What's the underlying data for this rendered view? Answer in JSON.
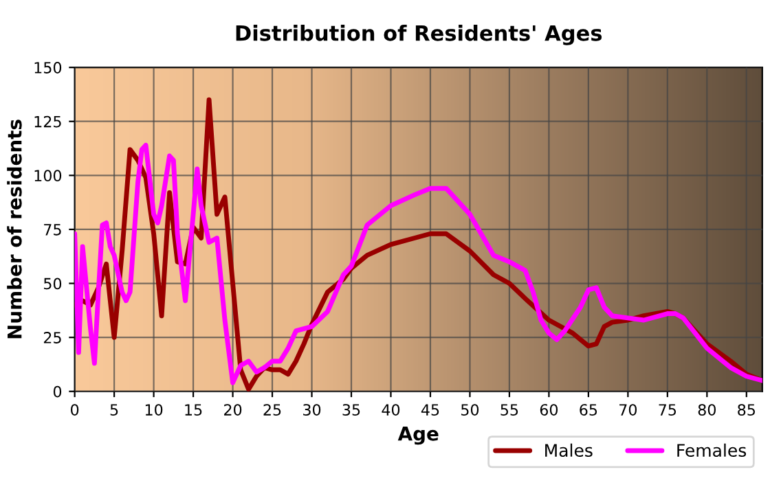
{
  "chart_data": {
    "type": "line",
    "title": "Distribution of Residents' Ages",
    "xlabel": "Age",
    "ylabel": "Number of residents",
    "series": [
      {
        "name": "Males",
        "color": "#990000",
        "x": [
          0,
          1,
          2,
          3,
          4,
          5,
          6,
          7,
          8,
          9,
          10,
          11,
          12,
          13,
          14,
          15,
          16,
          17,
          18,
          19,
          20,
          21,
          22,
          23,
          24,
          25,
          26,
          27,
          28,
          29,
          30,
          32,
          34,
          35,
          37,
          40,
          43,
          45,
          47,
          50,
          53,
          55,
          57,
          60,
          62,
          63,
          65,
          66,
          67,
          68,
          70,
          72,
          75,
          76,
          77,
          80,
          83,
          85,
          87
        ],
        "values": [
          40,
          42,
          40,
          48,
          59,
          25,
          65,
          112,
          107,
          99,
          73,
          35,
          92,
          60,
          59,
          76,
          71,
          135,
          82,
          90,
          50,
          10,
          1,
          7,
          11,
          10,
          10,
          8,
          14,
          22,
          31,
          46,
          52,
          57,
          63,
          68,
          71,
          73,
          73,
          65,
          54,
          50,
          43,
          33,
          29,
          27,
          21,
          22,
          30,
          32,
          33,
          35,
          37,
          36,
          34,
          22,
          14,
          8,
          5
        ]
      },
      {
        "name": "Females",
        "color": "#ff00ff",
        "x": [
          0,
          0.5,
          1,
          2,
          2.5,
          3,
          3.5,
          4,
          4.5,
          5,
          6,
          6.5,
          7,
          8,
          8.5,
          9,
          10,
          10.5,
          11,
          12,
          12.5,
          13,
          14,
          15,
          15.5,
          16,
          17,
          18,
          19,
          20,
          21,
          22,
          23,
          24,
          25,
          26,
          27,
          28,
          30,
          32,
          34,
          35,
          37,
          40,
          43,
          45,
          47,
          50,
          53,
          55,
          57,
          58,
          59,
          60,
          61,
          62,
          64,
          65,
          66,
          67,
          68,
          70,
          72,
          75,
          76,
          77,
          80,
          83,
          85,
          87
        ],
        "values": [
          73,
          18,
          67,
          29,
          13,
          46,
          77,
          78,
          67,
          63,
          46,
          42,
          46,
          97,
          112,
          114,
          82,
          78,
          86,
          109,
          107,
          73,
          42,
          82,
          103,
          86,
          69,
          71,
          33,
          4,
          12,
          14,
          9,
          11,
          14,
          14,
          20,
          28,
          30,
          37,
          54,
          58,
          77,
          86,
          91,
          94,
          94,
          82,
          63,
          60,
          56,
          46,
          33,
          27,
          24,
          28,
          39,
          47,
          48,
          39,
          35,
          34,
          33,
          36,
          36,
          34,
          20,
          11,
          7,
          5
        ]
      }
    ],
    "xlim": [
      0,
      87
    ],
    "xticks": [
      0,
      5,
      10,
      15,
      20,
      25,
      30,
      35,
      40,
      45,
      50,
      55,
      60,
      65,
      70,
      75,
      80,
      85
    ],
    "ylim": [
      0,
      150
    ],
    "yticks": [
      0,
      25,
      50,
      75,
      100,
      125,
      150
    ],
    "grid": true,
    "legend": "bottom right",
    "line_style": "solid",
    "marker": "none"
  }
}
